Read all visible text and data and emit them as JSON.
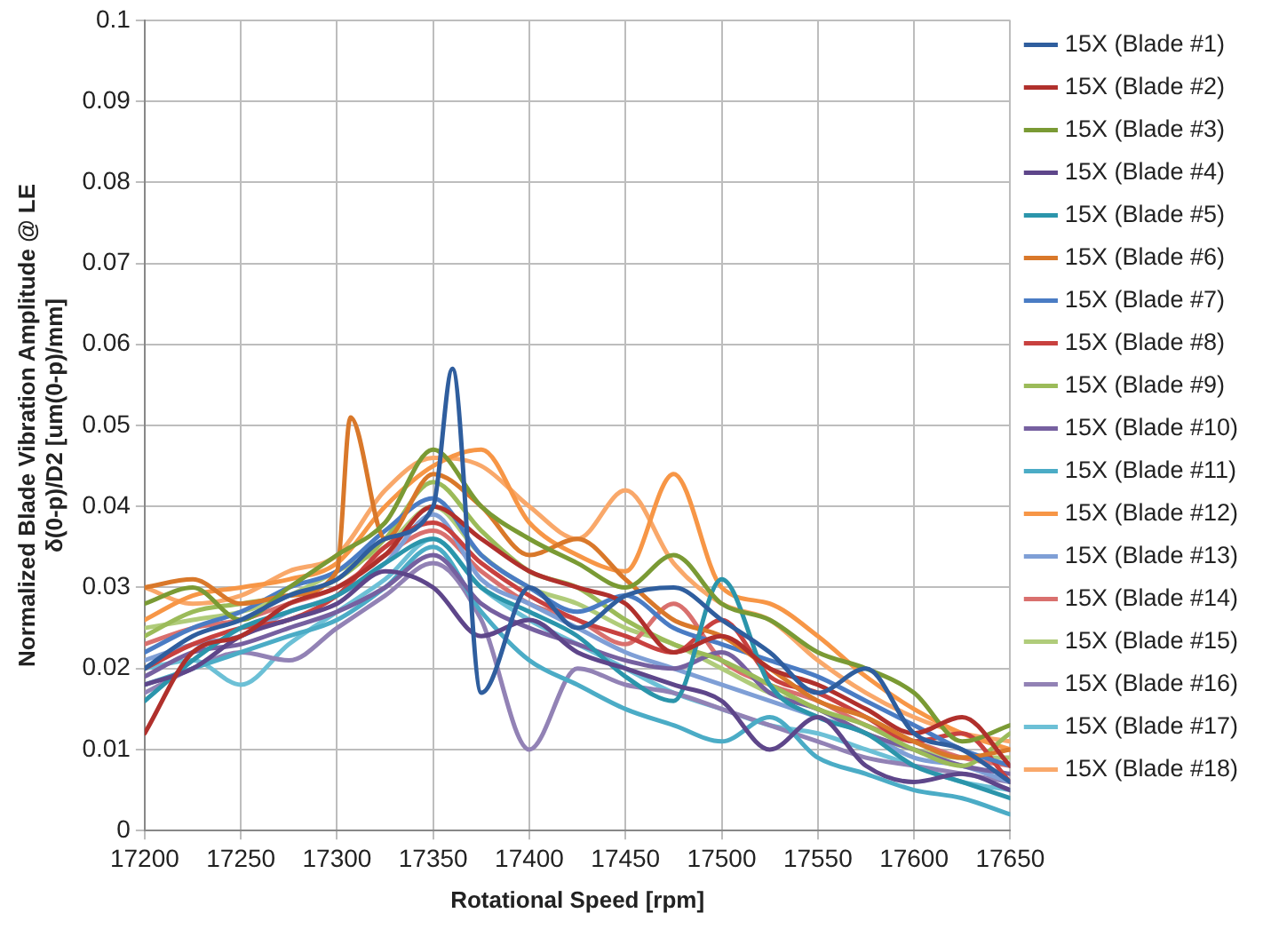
{
  "chart_data": {
    "type": "line",
    "xlabel": "Rotational Speed [rpm]",
    "ylabel": "Normalized Blade Vibration Amplitude @ LE\nδ(0-p)/D2 [um(0-p)/mm]",
    "x": [
      17200,
      17225,
      17250,
      17275,
      17300,
      17325,
      17350,
      17375,
      17400,
      17425,
      17450,
      17475,
      17500,
      17525,
      17550,
      17575,
      17600,
      17625,
      17650
    ],
    "xlim": [
      17200,
      17650
    ],
    "xticks": [
      17200,
      17250,
      17300,
      17350,
      17400,
      17450,
      17500,
      17550,
      17600,
      17650
    ],
    "ylim": [
      0,
      0.1
    ],
    "yticks": [
      0,
      0.01,
      0.02,
      0.03,
      0.04,
      0.05,
      0.06,
      0.07,
      0.08,
      0.09,
      0.1
    ],
    "grid": true,
    "legend": "right",
    "marker": "none",
    "line_style": "solid",
    "series": [
      {
        "name": "15X (Blade #1)",
        "color": "#2f5e9e",
        "x": [
          17200,
          17225,
          17250,
          17275,
          17300,
          17325,
          17350,
          17360,
          17375,
          17400,
          17425,
          17450,
          17475,
          17500,
          17525,
          17550,
          17575,
          17600,
          17625,
          17650
        ],
        "values": [
          0.02,
          0.024,
          0.026,
          0.029,
          0.031,
          0.036,
          0.04,
          0.057,
          0.017,
          0.03,
          0.025,
          0.029,
          0.03,
          0.026,
          0.022,
          0.017,
          0.02,
          0.012,
          0.01,
          0.006
        ]
      },
      {
        "name": "15X (Blade #2)",
        "color": "#b0302c",
        "values": [
          0.012,
          0.022,
          0.024,
          0.028,
          0.03,
          0.034,
          0.04,
          0.036,
          0.032,
          0.03,
          0.028,
          0.022,
          0.024,
          0.02,
          0.018,
          0.015,
          0.012,
          0.014,
          0.008
        ]
      },
      {
        "name": "15X (Blade #3)",
        "color": "#7a9a34",
        "values": [
          0.028,
          0.03,
          0.026,
          0.03,
          0.034,
          0.038,
          0.047,
          0.04,
          0.036,
          0.033,
          0.03,
          0.034,
          0.028,
          0.026,
          0.022,
          0.02,
          0.017,
          0.011,
          0.013
        ]
      },
      {
        "name": "15X (Blade #4)",
        "color": "#5e468a",
        "values": [
          0.018,
          0.02,
          0.024,
          0.026,
          0.028,
          0.032,
          0.03,
          0.024,
          0.026,
          0.022,
          0.02,
          0.018,
          0.016,
          0.01,
          0.014,
          0.008,
          0.006,
          0.007,
          0.005
        ]
      },
      {
        "name": "15X (Blade #5)",
        "color": "#2b95ab",
        "values": [
          0.016,
          0.021,
          0.025,
          0.027,
          0.029,
          0.033,
          0.036,
          0.03,
          0.027,
          0.024,
          0.019,
          0.016,
          0.031,
          0.018,
          0.014,
          0.012,
          0.008,
          0.006,
          0.004
        ]
      },
      {
        "name": "15X (Blade #6)",
        "color": "#d9782a",
        "x": [
          17200,
          17225,
          17250,
          17275,
          17300,
          17307,
          17325,
          17350,
          17375,
          17400,
          17425,
          17450,
          17475,
          17500,
          17525,
          17550,
          17575,
          17600,
          17625,
          17650
        ],
        "values": [
          0.03,
          0.031,
          0.028,
          0.029,
          0.032,
          0.051,
          0.036,
          0.044,
          0.04,
          0.034,
          0.036,
          0.031,
          0.026,
          0.024,
          0.02,
          0.016,
          0.014,
          0.011,
          0.009,
          0.01
        ]
      },
      {
        "name": "15X (Blade #7)",
        "color": "#4a7cc4",
        "values": [
          0.022,
          0.025,
          0.027,
          0.03,
          0.032,
          0.037,
          0.041,
          0.034,
          0.03,
          0.027,
          0.029,
          0.025,
          0.023,
          0.021,
          0.019,
          0.016,
          0.013,
          0.01,
          0.008
        ]
      },
      {
        "name": "15X (Blade #8)",
        "color": "#c8413f",
        "values": [
          0.02,
          0.023,
          0.025,
          0.026,
          0.029,
          0.035,
          0.038,
          0.033,
          0.029,
          0.026,
          0.024,
          0.022,
          0.026,
          0.019,
          0.017,
          0.014,
          0.011,
          0.012,
          0.006
        ]
      },
      {
        "name": "15X (Blade #9)",
        "color": "#9bbb59",
        "values": [
          0.024,
          0.027,
          0.028,
          0.029,
          0.031,
          0.036,
          0.043,
          0.037,
          0.032,
          0.03,
          0.026,
          0.023,
          0.021,
          0.018,
          0.015,
          0.013,
          0.01,
          0.008,
          0.012
        ]
      },
      {
        "name": "15X (Blade #10)",
        "color": "#7660a0",
        "values": [
          0.019,
          0.022,
          0.023,
          0.025,
          0.027,
          0.03,
          0.034,
          0.028,
          0.025,
          0.023,
          0.021,
          0.02,
          0.022,
          0.017,
          0.015,
          0.012,
          0.01,
          0.008,
          0.007
        ]
      },
      {
        "name": "15X (Blade #11)",
        "color": "#4bacc6",
        "values": [
          0.018,
          0.02,
          0.022,
          0.024,
          0.026,
          0.03,
          0.035,
          0.027,
          0.021,
          0.018,
          0.015,
          0.013,
          0.011,
          0.014,
          0.009,
          0.007,
          0.005,
          0.004,
          0.002
        ]
      },
      {
        "name": "15X (Blade #12)",
        "color": "#f79646",
        "values": [
          0.026,
          0.029,
          0.03,
          0.031,
          0.033,
          0.04,
          0.045,
          0.047,
          0.038,
          0.034,
          0.032,
          0.044,
          0.03,
          0.028,
          0.024,
          0.019,
          0.015,
          0.012,
          0.01
        ]
      },
      {
        "name": "15X (Blade #13)",
        "color": "#7f9fd6",
        "values": [
          0.021,
          0.023,
          0.024,
          0.027,
          0.029,
          0.033,
          0.039,
          0.031,
          0.028,
          0.025,
          0.022,
          0.02,
          0.018,
          0.016,
          0.014,
          0.012,
          0.009,
          0.008,
          0.006
        ]
      },
      {
        "name": "15X (Blade #14)",
        "color": "#d9706e",
        "values": [
          0.023,
          0.025,
          0.026,
          0.028,
          0.03,
          0.034,
          0.037,
          0.032,
          0.028,
          0.026,
          0.023,
          0.028,
          0.021,
          0.018,
          0.016,
          0.013,
          0.011,
          0.009,
          0.008
        ]
      },
      {
        "name": "15X (Blade #15)",
        "color": "#b0cc7a",
        "values": [
          0.025,
          0.026,
          0.027,
          0.029,
          0.032,
          0.035,
          0.04,
          0.034,
          0.03,
          0.028,
          0.025,
          0.023,
          0.02,
          0.017,
          0.015,
          0.012,
          0.01,
          0.009,
          0.009
        ]
      },
      {
        "name": "15X (Blade #16)",
        "color": "#9282b5",
        "values": [
          0.017,
          0.02,
          0.022,
          0.021,
          0.025,
          0.029,
          0.033,
          0.026,
          0.01,
          0.02,
          0.018,
          0.017,
          0.015,
          0.013,
          0.011,
          0.009,
          0.008,
          0.007,
          0.006
        ]
      },
      {
        "name": "15X (Blade #17)",
        "color": "#6cc0d6",
        "values": [
          0.02,
          0.021,
          0.018,
          0.023,
          0.027,
          0.031,
          0.036,
          0.03,
          0.026,
          0.023,
          0.02,
          0.017,
          0.015,
          0.013,
          0.012,
          0.01,
          0.008,
          0.006,
          0.005
        ]
      },
      {
        "name": "15X (Blade #18)",
        "color": "#f9a86a",
        "values": [
          0.03,
          0.028,
          0.029,
          0.032,
          0.034,
          0.042,
          0.046,
          0.045,
          0.04,
          0.036,
          0.042,
          0.033,
          0.028,
          0.026,
          0.021,
          0.017,
          0.014,
          0.012,
          0.011
        ]
      }
    ]
  }
}
